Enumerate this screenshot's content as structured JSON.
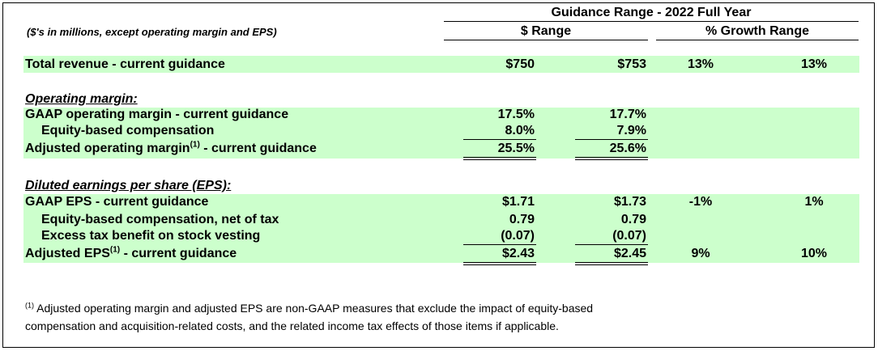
{
  "header": {
    "group_title": "Guidance Range - 2022 Full Year",
    "units_note": "($'s in millions, except operating margin and EPS)",
    "col_dollar": "$ Range",
    "col_growth": "% Growth Range"
  },
  "revenue": {
    "label": "Total revenue - current guidance",
    "low": "$750",
    "high": "$753",
    "growth_low": "13%",
    "growth_high": "13%"
  },
  "operating_margin": {
    "title": "Operating margin:",
    "gaap": {
      "label": "GAAP operating margin - current guidance",
      "low": "17.5%",
      "high": "17.7%"
    },
    "equity": {
      "label": "Equity-based compensation",
      "low": "8.0%",
      "high": "7.9%"
    },
    "adjusted": {
      "label_pre": "Adjusted operating margin",
      "footnote": "(1)",
      "label_post": " - current guidance",
      "low": "25.5%",
      "high": "25.6%"
    }
  },
  "eps": {
    "title": "Diluted earnings per share (EPS):",
    "gaap": {
      "label": "GAAP EPS - current guidance",
      "low": "$1.71",
      "high": "$1.73",
      "growth_low": "-1%",
      "growth_high": "1%"
    },
    "equity": {
      "label": "Equity-based compensation, net of tax",
      "low": "0.79",
      "high": "0.79"
    },
    "excess": {
      "label": "Excess tax benefit on stock vesting",
      "low": "(0.07)",
      "high": "(0.07)"
    },
    "adjusted": {
      "label_pre": "Adjusted EPS",
      "footnote": "(1)",
      "label_post": " - current guidance",
      "low": "$2.43",
      "high": "$2.45",
      "growth_low": "9%",
      "growth_high": "10%"
    }
  },
  "footnote": {
    "marker": "(1)",
    "line1": " Adjusted operating margin and adjusted EPS are non-GAAP measures that exclude the impact of equity-based",
    "line2": "compensation and acquisition-related costs, and the related income tax effects of those items if applicable."
  },
  "colors": {
    "highlight": "#ccffcc",
    "text": "#000000"
  }
}
